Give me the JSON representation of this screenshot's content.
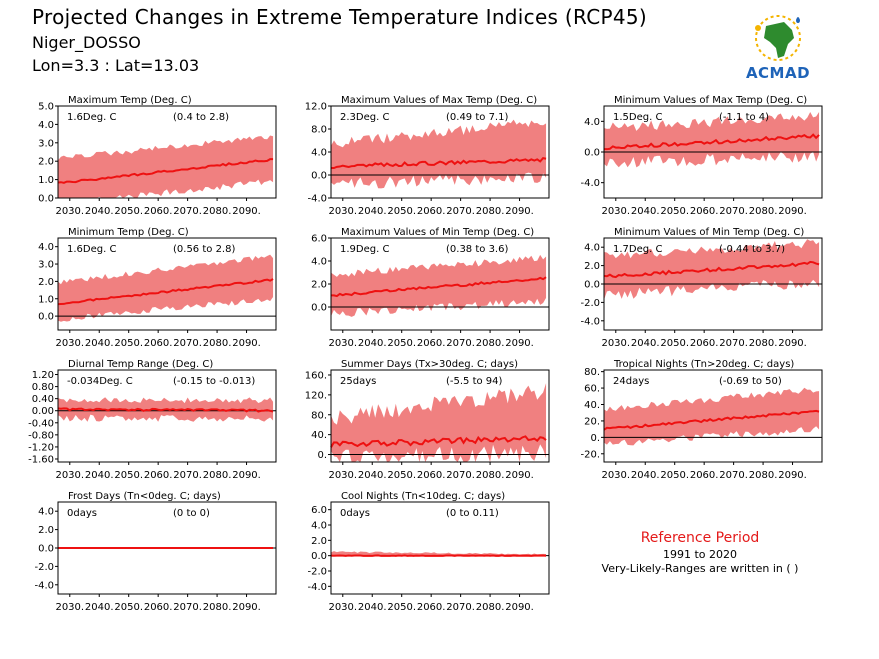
{
  "header": {
    "title": "Projected Changes in Extreme Temperature Indices (RCP45)",
    "station": "Niger_DOSSO",
    "coords": "Lon=3.3 : Lat=13.03",
    "logo_text": "ACMAD"
  },
  "reference": {
    "title": "Reference Period",
    "years": "1991 to 2020",
    "note": "Very-Likely-Ranges are written in ( )"
  },
  "colors": {
    "band": "#f08080",
    "line": "#ee1111",
    "zero": "#000000",
    "ref": "#e41a1a",
    "logo": "#1e63b8"
  },
  "chart_data": [
    {
      "id": "p1",
      "type": "area",
      "title": "Maximum Temp (Deg. C)",
      "change": "1.6Deg. C",
      "range": "(0.4 to 2.8)",
      "ylim": [
        0,
        5
      ],
      "yticks": [
        "0.0",
        "1.0",
        "2.0",
        "3.0",
        "4.0",
        "5.0"
      ],
      "xlim": [
        2026,
        2100
      ],
      "xticks": [
        "2030.",
        "2040.",
        "2050.",
        "2060.",
        "2070.",
        "2080.",
        "2090."
      ],
      "median_start": 0.8,
      "median_end": 2.1,
      "band_low_start": -0.3,
      "band_low_end": 0.9,
      "band_high_start": 2.0,
      "band_high_end": 3.2,
      "noise": 0.3
    },
    {
      "id": "p2",
      "type": "area",
      "title": "Maximum Values of Max Temp (Deg. C)",
      "change": "2.3Deg. C",
      "range": "(0.49 to 7.1)",
      "ylim": [
        -4,
        12
      ],
      "yticks": [
        "-4.0",
        "0.0",
        "4.0",
        "8.0",
        "12.0"
      ],
      "xlim": [
        2026,
        2100
      ],
      "xticks": [
        "2030.",
        "2040.",
        "2050.",
        "2060.",
        "2070.",
        "2080.",
        "2090."
      ],
      "median_start": 1.5,
      "median_end": 2.7,
      "band_low_start": -1.5,
      "band_low_end": -0.5,
      "band_high_start": 4.5,
      "band_high_end": 8.5,
      "noise": 1.8
    },
    {
      "id": "p3",
      "type": "area",
      "title": "Minimum Values of Max Temp (Deg. C)",
      "change": "1.5Deg. C",
      "range": "(-1.1 to 4)",
      "ylim": [
        -6,
        6
      ],
      "yticks": [
        "-4.0",
        "0.0",
        "4.0"
      ],
      "xlim": [
        2026,
        2100
      ],
      "xticks": [
        "2030.",
        "2040.",
        "2050.",
        "2060.",
        "2070.",
        "2080.",
        "2090."
      ],
      "median_start": 0.5,
      "median_end": 2.1,
      "band_low_start": -1.5,
      "band_low_end": -0.5,
      "band_high_start": 2.5,
      "band_high_end": 4.0,
      "noise": 1.3
    },
    {
      "id": "p4",
      "type": "area",
      "title": "Minimum Temp (Deg. C)",
      "change": "1.6Deg. C",
      "range": "(0.56 to 2.8)",
      "ylim": [
        -0.8,
        4.5
      ],
      "yticks": [
        "0.0",
        "1.0",
        "2.0",
        "3.0",
        "4.0"
      ],
      "xlim": [
        2026,
        2100
      ],
      "xticks": [
        "2030.",
        "2040.",
        "2050.",
        "2060.",
        "2070.",
        "2080.",
        "2090."
      ],
      "median_start": 0.7,
      "median_end": 2.1,
      "band_low_start": -0.2,
      "band_low_end": 1.0,
      "band_high_start": 1.8,
      "band_high_end": 3.3,
      "noise": 0.3
    },
    {
      "id": "p5",
      "type": "area",
      "title": "Maximum Values of Min Temp (Deg. C)",
      "change": "1.9Deg. C",
      "range": "(0.38 to 3.6)",
      "ylim": [
        -2,
        6
      ],
      "yticks": [
        "0.0",
        "2.0",
        "4.0",
        "6.0"
      ],
      "xlim": [
        2026,
        2100
      ],
      "xticks": [
        "2030.",
        "2040.",
        "2050.",
        "2060.",
        "2070.",
        "2080.",
        "2090."
      ],
      "median_start": 1.0,
      "median_end": 2.5,
      "band_low_start": -0.6,
      "band_low_end": 0.5,
      "band_high_start": 2.5,
      "band_high_end": 4.0,
      "noise": 0.6
    },
    {
      "id": "p6",
      "type": "area",
      "title": "Minimum Values of Min Temp (Deg. C)",
      "change": "1.7Deg. C",
      "range": "(-0.44 to 3.7)",
      "ylim": [
        -5,
        5
      ],
      "yticks": [
        "-4.0",
        "-2.0",
        "0.0",
        "2.0",
        "4.0"
      ],
      "xlim": [
        2026,
        2100
      ],
      "xticks": [
        "2030.",
        "2040.",
        "2050.",
        "2060.",
        "2070.",
        "2080.",
        "2090."
      ],
      "median_start": 0.8,
      "median_end": 2.3,
      "band_low_start": -1.2,
      "band_low_end": 0.2,
      "band_high_start": 2.5,
      "band_high_end": 4.0,
      "noise": 1.0
    },
    {
      "id": "p7",
      "type": "area",
      "title": "Diurnal Temp Range (Deg. C)",
      "change": "-0.034Deg. C",
      "range": "(-0.15 to -0.013)",
      "ylim": [
        -1.7,
        1.35
      ],
      "yticks": [
        "-1.60",
        "-1.20",
        "-0.80",
        "-0.40",
        "0.00",
        "0.40",
        "0.80",
        "1.20"
      ],
      "xlim": [
        2026,
        2100
      ],
      "xticks": [
        "2030.",
        "2040.",
        "2050.",
        "2060.",
        "2070.",
        "2080.",
        "2090."
      ],
      "median_start": 0.05,
      "median_end": 0.0,
      "band_low_start": -0.25,
      "band_low_end": -0.25,
      "band_high_start": 0.25,
      "band_high_end": 0.25,
      "noise": 0.2
    },
    {
      "id": "p8",
      "type": "area",
      "title": "Summer Days (Tx>30deg. C; days)",
      "change": "25days",
      "range": "(-5.5 to 94)",
      "ylim": [
        -15,
        170
      ],
      "yticks": [
        "0.",
        "40.",
        "80.",
        "120.",
        "160."
      ],
      "xlim": [
        2026,
        2100
      ],
      "xticks": [
        "2030.",
        "2040.",
        "2050.",
        "2060.",
        "2070.",
        "2080.",
        "2090."
      ],
      "median_start": 20,
      "median_end": 33,
      "band_low_start": -5,
      "band_low_end": 0,
      "band_high_start": 55,
      "band_high_end": 110,
      "noise": 35
    },
    {
      "id": "p9",
      "type": "area",
      "title": "Tropical Nights (Tn>20deg. C; days)",
      "change": "24days",
      "range": "(-0.69 to 50)",
      "ylim": [
        -30,
        82
      ],
      "yticks": [
        "-20.",
        "0.",
        "20.",
        "40.",
        "60.",
        "80."
      ],
      "xlim": [
        2026,
        2100
      ],
      "xticks": [
        "2030.",
        "2040.",
        "2050.",
        "2060.",
        "2070.",
        "2080.",
        "2090."
      ],
      "median_start": 10,
      "median_end": 32,
      "band_low_start": -8,
      "band_low_end": 10,
      "band_high_start": 30,
      "band_high_end": 55,
      "noise": 8
    },
    {
      "id": "p10",
      "type": "area",
      "title": "Frost Days (Tn<0deg. C; days)",
      "change": "0days",
      "range": "(0 to 0)",
      "ylim": [
        -5,
        5
      ],
      "yticks": [
        "-4.0",
        "-2.0",
        "0.0",
        "2.0",
        "4.0"
      ],
      "xlim": [
        2026,
        2100
      ],
      "xticks": [
        "2030.",
        "2040.",
        "2050.",
        "2060.",
        "2070.",
        "2080.",
        "2090."
      ],
      "median_start": 0,
      "median_end": 0,
      "band_low_start": 0,
      "band_low_end": 0,
      "band_high_start": 0,
      "band_high_end": 0,
      "noise": 0
    },
    {
      "id": "p11",
      "type": "area",
      "title": "Cool Nights (Tn<10deg. C; days)",
      "change": "0days",
      "range": "(0 to 0.11)",
      "ylim": [
        -5,
        7
      ],
      "yticks": [
        "-4.0",
        "-2.0",
        "0.0",
        "2.0",
        "4.0",
        "6.0"
      ],
      "xlim": [
        2026,
        2100
      ],
      "xticks": [
        "2030.",
        "2040.",
        "2050.",
        "2060.",
        "2070.",
        "2080.",
        "2090."
      ],
      "median_start": 0,
      "median_end": 0,
      "band_low_start": 0,
      "band_low_end": 0,
      "band_high_start": 0.4,
      "band_high_end": 0.1,
      "noise": 0.2
    }
  ]
}
